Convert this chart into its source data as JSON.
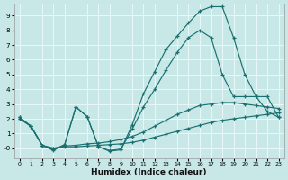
{
  "xlabel": "Humidex (Indice chaleur)",
  "xlim": [
    -0.5,
    23.5
  ],
  "ylim": [
    -0.7,
    9.8
  ],
  "ytick_vals": [
    0,
    1,
    2,
    3,
    4,
    5,
    6,
    7,
    8,
    9
  ],
  "ytick_labels": [
    "-0",
    "1",
    "2",
    "3",
    "4",
    "5",
    "6",
    "7",
    "8",
    "9"
  ],
  "xtick_vals": [
    0,
    1,
    2,
    3,
    4,
    5,
    6,
    7,
    8,
    9,
    10,
    11,
    12,
    13,
    14,
    15,
    16,
    17,
    18,
    19,
    20,
    21,
    22,
    23
  ],
  "background_color": "#c8e8e8",
  "grid_color": "#e8f8f8",
  "line_color": "#1a7070",
  "curve_big_x": [
    0,
    1,
    2,
    3,
    4,
    5,
    6,
    7,
    8,
    9,
    10,
    11,
    12,
    13,
    14,
    15,
    16,
    17,
    18,
    19,
    20,
    21,
    22,
    23
  ],
  "curve_big_y": [
    2.1,
    1.5,
    0.2,
    -0.15,
    0.25,
    2.8,
    2.15,
    0.1,
    -0.2,
    -0.1,
    1.6,
    3.7,
    5.2,
    6.7,
    7.6,
    8.5,
    9.3,
    9.6,
    9.6,
    7.5,
    5.0,
    3.5,
    3.5,
    2.1
  ],
  "curve_mid_x": [
    0,
    1,
    2,
    3,
    4,
    5,
    6,
    7,
    8,
    9,
    10,
    11,
    12,
    13,
    14,
    15,
    16,
    17,
    18,
    19,
    20,
    21,
    22,
    23
  ],
  "curve_mid_y": [
    2.1,
    1.5,
    0.2,
    -0.1,
    0.25,
    2.8,
    2.15,
    0.1,
    -0.15,
    -0.05,
    1.3,
    2.8,
    4.0,
    5.3,
    6.5,
    7.5,
    8.0,
    7.5,
    5.0,
    3.5,
    3.5,
    3.5,
    2.5,
    2.1
  ],
  "curve_top_x": [
    0,
    1,
    2,
    3,
    4,
    5,
    6,
    7,
    8,
    9,
    10,
    11,
    12,
    13,
    14,
    15,
    16,
    17,
    18,
    19,
    20,
    21,
    22,
    23
  ],
  "curve_top_y": [
    2.0,
    1.5,
    0.2,
    0.0,
    0.15,
    0.2,
    0.3,
    0.35,
    0.45,
    0.6,
    0.8,
    1.1,
    1.5,
    1.9,
    2.3,
    2.6,
    2.9,
    3.0,
    3.1,
    3.1,
    3.0,
    2.9,
    2.8,
    2.7
  ],
  "curve_bot_x": [
    0,
    1,
    2,
    3,
    4,
    5,
    6,
    7,
    8,
    9,
    10,
    11,
    12,
    13,
    14,
    15,
    16,
    17,
    18,
    19,
    20,
    21,
    22,
    23
  ],
  "curve_bot_y": [
    2.0,
    1.5,
    0.2,
    0.0,
    0.1,
    0.1,
    0.15,
    0.2,
    0.25,
    0.3,
    0.4,
    0.55,
    0.75,
    0.95,
    1.15,
    1.35,
    1.55,
    1.75,
    1.9,
    2.0,
    2.1,
    2.2,
    2.3,
    2.4
  ]
}
